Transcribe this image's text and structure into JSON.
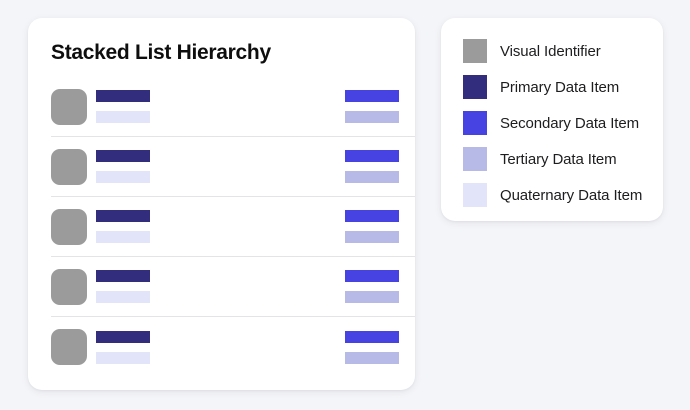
{
  "colors": {
    "page_background": "#f4f5f8",
    "card_background": "#ffffff",
    "divider": "#e4e4e7",
    "visual_identifier": "#9b9b9b",
    "primary": "#322e7d",
    "secondary": "#4743e3",
    "tertiary": "#b7b9e6",
    "quaternary": "#e2e4fa"
  },
  "list_card": {
    "title": "Stacked List Hierarchy",
    "rows": [
      {
        "avatar": "visual_identifier",
        "left_bars": [
          "primary",
          "quaternary"
        ],
        "right_bars": [
          "secondary",
          "tertiary"
        ]
      },
      {
        "avatar": "visual_identifier",
        "left_bars": [
          "primary",
          "quaternary"
        ],
        "right_bars": [
          "secondary",
          "tertiary"
        ]
      },
      {
        "avatar": "visual_identifier",
        "left_bars": [
          "primary",
          "quaternary"
        ],
        "right_bars": [
          "secondary",
          "tertiary"
        ]
      },
      {
        "avatar": "visual_identifier",
        "left_bars": [
          "primary",
          "quaternary"
        ],
        "right_bars": [
          "secondary",
          "tertiary"
        ]
      },
      {
        "avatar": "visual_identifier",
        "left_bars": [
          "primary",
          "quaternary"
        ],
        "right_bars": [
          "secondary",
          "tertiary"
        ]
      }
    ]
  },
  "legend": {
    "items": [
      {
        "label": "Visual Identifier",
        "color": "#9b9b9b"
      },
      {
        "label": "Primary Data Item",
        "color": "#322e7d"
      },
      {
        "label": "Secondary Data Item",
        "color": "#4743e3"
      },
      {
        "label": "Tertiary Data Item",
        "color": "#b7b9e6"
      },
      {
        "label": "Quaternary Data Item",
        "color": "#e2e4fa"
      }
    ]
  }
}
